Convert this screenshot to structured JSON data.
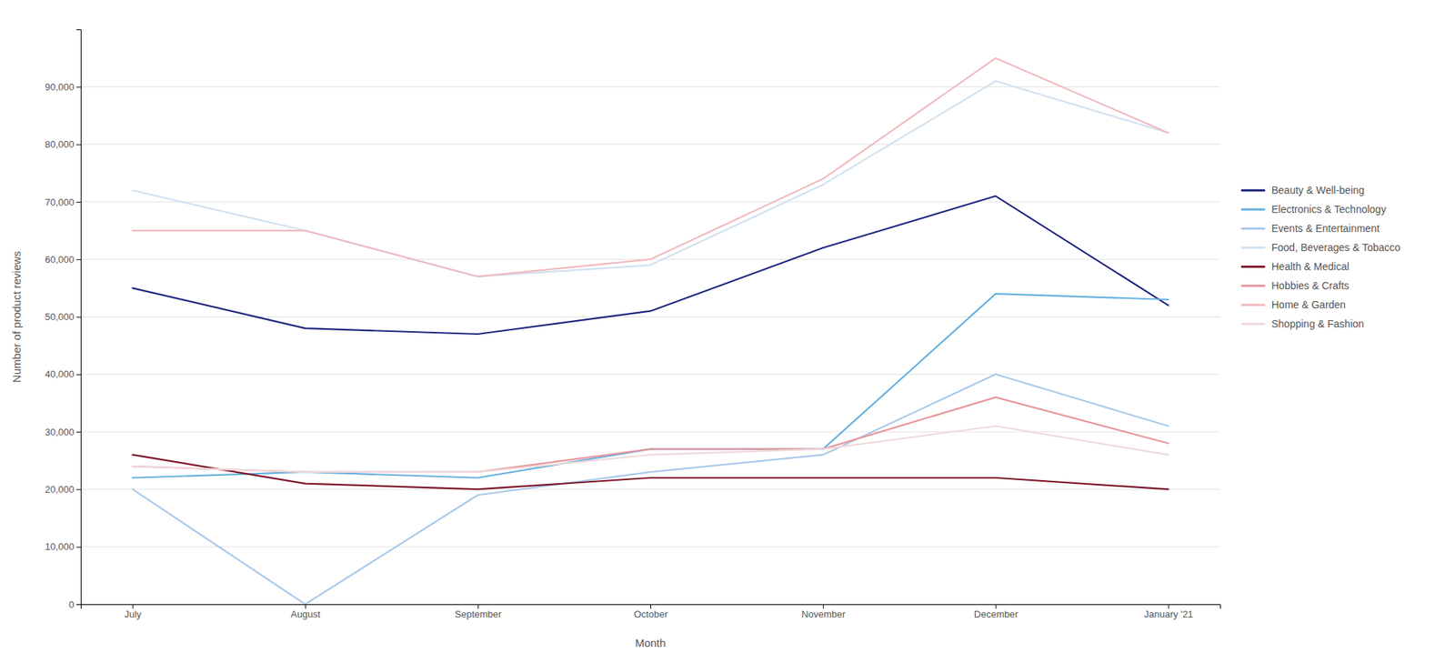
{
  "chart_data": {
    "type": "line",
    "x_label": "Month",
    "y_label": "Number of product reviews",
    "categories": [
      "July",
      "August",
      "September",
      "October",
      "November",
      "December",
      "January '21"
    ],
    "series": [
      {
        "name": "Beauty & Well-being",
        "color": "#1a237e",
        "values": [
          55000,
          48000,
          47000,
          51000,
          62000,
          71000,
          52000
        ]
      },
      {
        "name": "Electronics & Technology",
        "color": "#64b0e0",
        "values": [
          22000,
          23000,
          22000,
          27000,
          27000,
          54000,
          53000
        ]
      },
      {
        "name": "Events & Entertainment",
        "color": "#a8c8e8",
        "values": [
          20000,
          0,
          19000,
          23000,
          26000,
          40000,
          31000
        ]
      },
      {
        "name": "Food, Beverages & Tobacco",
        "color": "#cfe0f0",
        "values": [
          72000,
          65000,
          57000,
          59000,
          73000,
          91000,
          82000
        ]
      },
      {
        "name": "Health & Medical",
        "color": "#7b1025",
        "values": [
          26000,
          21000,
          20000,
          22000,
          22000,
          22000,
          20000
        ]
      },
      {
        "name": "Hobbies & Crafts",
        "color": "#e8959a",
        "values": [
          24000,
          23000,
          23000,
          27000,
          27000,
          36000,
          28000
        ]
      },
      {
        "name": "Home & Garden",
        "color": "#f2b8be",
        "values": [
          65000,
          65000,
          57000,
          60000,
          74000,
          95000,
          82000
        ]
      },
      {
        "name": "Shopping & Fashion",
        "color": "#f0d8da",
        "values": [
          24000,
          23000,
          23000,
          26000,
          27000,
          31000,
          26000
        ]
      }
    ],
    "ylim": [
      0,
      100000
    ],
    "yticks": [
      0,
      {
        "value": 10000,
        "label": "10,000"
      },
      {
        "value": 20000,
        "label": "20,000"
      },
      {
        "value": 30000,
        "label": "30,000"
      },
      {
        "value": 40000,
        "label": "40,000"
      },
      {
        "value": 50000,
        "label": "50,000"
      },
      {
        "value": 60000,
        "label": "60,000"
      },
      {
        "value": 70000,
        "label": "70,000"
      },
      {
        "value": 80000,
        "label": "80,000"
      },
      {
        "value": 90000,
        "label": "90,000"
      }
    ],
    "grid": true,
    "legend": "right"
  }
}
